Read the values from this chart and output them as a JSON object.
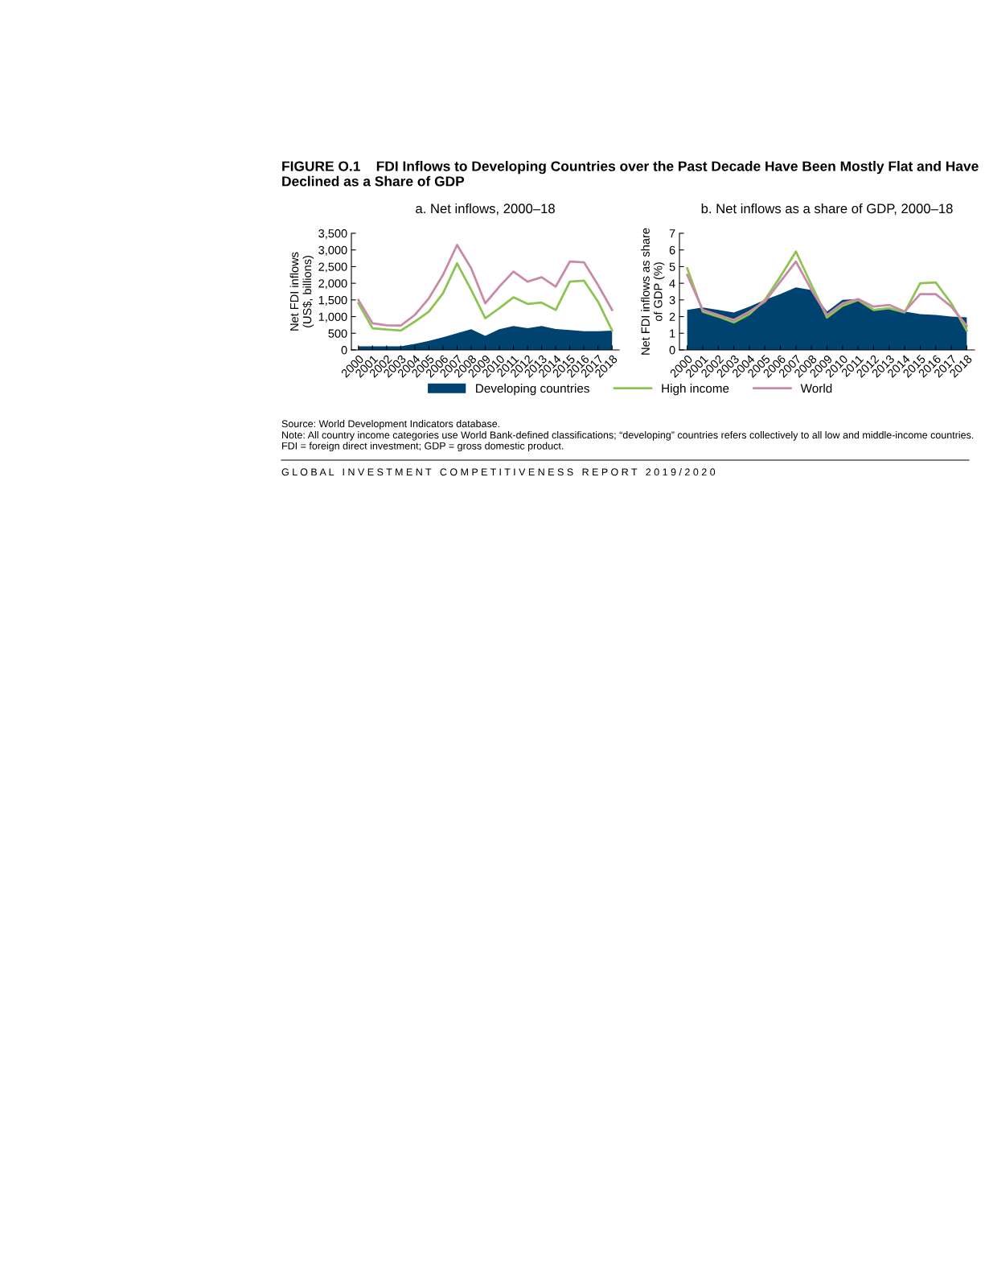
{
  "chart_data": [
    {
      "type": "line",
      "title": "a. Net inflows, 2000–18",
      "ylabel": "Net FDI inflows\n(US$, billions)",
      "categories": [
        "2000",
        "2001",
        "2002",
        "2003",
        "2004",
        "2005",
        "2006",
        "2007",
        "2008",
        "2009",
        "2010",
        "2011",
        "2012",
        "2013",
        "2014",
        "2015",
        "2016",
        "2017",
        "2018"
      ],
      "series": [
        {
          "name": "Developing countries",
          "type": "area",
          "color": "#004370",
          "values": [
            110,
            110,
            110,
            110,
            180,
            270,
            380,
            500,
            620,
            420,
            620,
            720,
            650,
            720,
            630,
            600,
            560,
            560,
            580
          ]
        },
        {
          "name": "High income",
          "type": "line",
          "color": "#8dc352",
          "values": [
            1400,
            650,
            610,
            580,
            850,
            1150,
            1700,
            2600,
            1800,
            950,
            1250,
            1580,
            1380,
            1420,
            1200,
            2050,
            2080,
            1450,
            580
          ]
        },
        {
          "name": "World",
          "type": "line",
          "color": "#c98aa8",
          "values": [
            1500,
            800,
            740,
            730,
            1050,
            1550,
            2250,
            3150,
            2450,
            1400,
            1900,
            2350,
            2050,
            2180,
            1900,
            2650,
            2630,
            1950,
            1200
          ]
        }
      ],
      "ylim": [
        0,
        3500
      ],
      "yticks": [
        0,
        500,
        {
          "value": 1000,
          "label": "1,000"
        },
        {
          "value": 1500,
          "label": "1,500"
        },
        {
          "value": 2000,
          "label": "2,000"
        },
        {
          "value": 2500,
          "label": "2,500"
        },
        {
          "value": 3000,
          "label": "3,000"
        },
        {
          "value": 3500,
          "label": "3,500"
        }
      ],
      "grid": false,
      "legend": "bottom",
      "annotations": [
        "FIGURE O.1    FDI Inflows to Developing Countries over the Past Decade Have Been Mostly Flat and Have Declined as a Share of GDP",
        "Source: World Development Indicators database.",
        "Note: All country income categories use World Bank-defined classifications; “developing” countries refers collectively to all low and middle-income countries. FDI = foreign direct investment; GDP = gross domestic product.",
        "G L O B A L   I N V E S T M E N T   C O M P E T I T I V E N E S S   R E P O R T   2 0 1 9 / 2 0 2 0"
      ]
    },
    {
      "type": "line",
      "title": "b. Net inflows as a share of GDP, 2000–18",
      "ylabel": "Net FDI inflows as share\nof GDP (%)",
      "categories": [
        "2000",
        "2001",
        "2002",
        "2003",
        "2004",
        "2005",
        "2006",
        "2007",
        "2008",
        "2009",
        "2010",
        "2011",
        "2012",
        "2013",
        "2014",
        "2015",
        "2016",
        "2017",
        "2018"
      ],
      "series": [
        {
          "type": "area",
          "color": "#004370",
          "values": [
            2.4,
            2.55,
            2.4,
            2.25,
            2.6,
            3.0,
            3.35,
            3.75,
            3.6,
            2.3,
            3.0,
            3.05,
            2.45,
            2.55,
            2.3,
            2.15,
            2.1,
            2.0,
            1.95
          ]
        },
        {
          "type": "line",
          "color": "#8dc352",
          "values": [
            4.9,
            2.3,
            2.0,
            1.65,
            2.15,
            3.0,
            4.4,
            5.9,
            3.9,
            1.95,
            2.65,
            3.0,
            2.4,
            2.5,
            2.25,
            4.0,
            4.05,
            2.8,
            1.15
          ]
        },
        {
          "type": "line",
          "color": "#c98aa8",
          "values": [
            4.5,
            2.4,
            2.1,
            1.8,
            2.3,
            2.9,
            4.1,
            5.3,
            3.6,
            2.1,
            2.8,
            3.05,
            2.6,
            2.7,
            2.3,
            3.35,
            3.35,
            2.6,
            1.45
          ]
        }
      ],
      "ylim": [
        0,
        7
      ],
      "yticks": [
        0,
        1,
        2,
        3,
        4,
        5,
        6,
        7
      ],
      "grid": false
    }
  ]
}
